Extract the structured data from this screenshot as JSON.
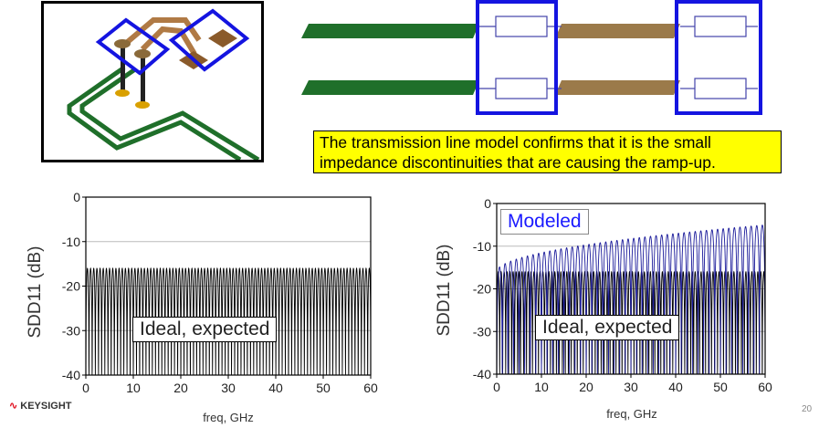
{
  "callout": {
    "line1": "The transmission line model confirms that it is the small",
    "line2": "impedance discontinuities that are causing the ramp-up."
  },
  "chart_data": [
    {
      "type": "line",
      "title": "",
      "xlabel": "freq, GHz",
      "ylabel": "SDD11 (dB)",
      "xlim": [
        0,
        60
      ],
      "ylim": [
        -40,
        0
      ],
      "xticks": [
        0,
        10,
        20,
        30,
        40,
        50,
        60
      ],
      "yticks": [
        0,
        -10,
        -20,
        -30,
        -40
      ],
      "grid": "horizontal",
      "annotation": "Ideal, expected",
      "series": [
        {
          "name": "Ideal, expected",
          "color": "#000000",
          "ripple_period_ghz": 0.667,
          "peak_db": -16,
          "null_db": -40
        }
      ]
    },
    {
      "type": "line",
      "title": "",
      "xlabel": "freq, GHz",
      "ylabel": "SDD11 (dB)",
      "xlim": [
        0,
        60
      ],
      "ylim": [
        -40,
        0
      ],
      "xticks": [
        0,
        10,
        20,
        30,
        40,
        50,
        60
      ],
      "yticks": [
        0,
        -10,
        -20,
        -30,
        -40
      ],
      "grid": "horizontal",
      "annotations": [
        "Modeled",
        "Ideal, expected"
      ],
      "series": [
        {
          "name": "Ideal, expected",
          "color": "#000000",
          "ripple_period_ghz": 0.667,
          "peak_db": -16,
          "null_db": -40
        },
        {
          "name": "Modeled",
          "color": "#1a1a9a",
          "ripple_period_ghz": 1.25,
          "peak_db_start": -16,
          "peak_db_end": -5,
          "null_db": -40
        }
      ]
    }
  ],
  "footer": {
    "brand": "KEYSIGHT",
    "page_number": "20"
  }
}
